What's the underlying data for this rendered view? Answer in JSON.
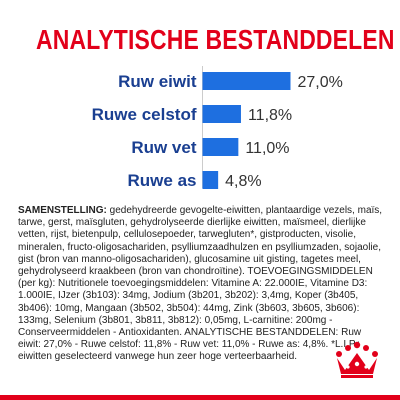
{
  "page": {
    "title": "ANALYTISCHE BESTANDDELEN",
    "composition_heading": "SAMENSTELLING:",
    "composition_body": "gedehydreerde gevogelte-eiwitten, plantaardige vezels, maïs, tarwe, gerst, maïsgluten, gehydrolyseerde dierlijke eiwitten, maïsmeel, dierlijke vetten, rijst, bietenpulp, cellulosepoeder, tarwegluten*, gistproducten, visolie, mineralen, fructo-oligosachariden, psylliumzaadhulzen en psylliumzaden, sojaolie, gist (bron van manno-oligosachariden), glucosamine uit gisting, tagetes meel, gehydrolyseerd kraakbeen (bron van chondroïtine). TOEVOEGINGSMIDDELEN (per kg): Nutritionele toevoegingsmiddelen: Vitamine A: 22.000IE, Vitamine D3: 1.000IE, IJzer (3b103): 34mg, Jodium (3b201, 3b202): 3,4mg, Koper (3b405, 3b406): 10mg, Mangaan (3b502, 3b504): 44mg, Zink (3b603, 3b605, 3b606): 133mg, Selenium (3b801, 3b811, 3b812): 0,05mg, L-carnitine: 200mg - Conserveermiddelen - Antioxidanten. ANALYTISCHE BESTANDDELEN: Ruw eiwit: 27,0% - Ruwe celstof: 11,8% - Ruw vet: 11,0% - Ruwe as: 4,8%. *L.I.P.: eiwitten geselecteerd vanwege hun zeer hoge verteerbaarheid."
  },
  "colors": {
    "brand_red": "#e2001a",
    "label_blue": "#1a3f91",
    "bar_blue": "#1e6fe0"
  },
  "icons": {
    "logo": "royal-canin-crown-logo"
  },
  "chart_data": {
    "type": "bar",
    "orientation": "horizontal",
    "title": "ANALYTISCHE BESTANDDELEN",
    "categories": [
      "Ruw eiwit",
      "Ruwe celstof",
      "Ruw vet",
      "Ruwe as"
    ],
    "values": [
      27.0,
      11.8,
      11.0,
      4.8
    ],
    "value_labels": [
      "27,0%",
      "11,8%",
      "11,0%",
      "4,8%"
    ],
    "xlim": [
      0,
      27.0
    ],
    "grid": false,
    "legend": "none"
  }
}
